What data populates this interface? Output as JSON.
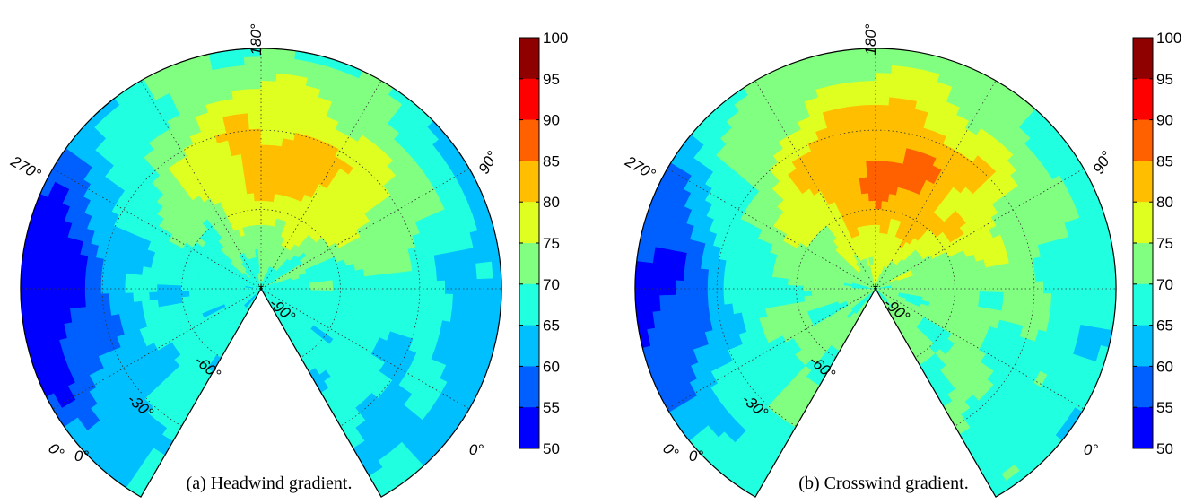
{
  "chart_data": [
    {
      "type": "heatmap",
      "subtype": "polar-contour",
      "caption": "(a) Headwind gradient.",
      "angle_labels": [
        "180°",
        "90°",
        "270°",
        "-90°",
        "-60°",
        "-30°",
        "0°",
        "0°",
        "0°"
      ],
      "colorbar": {
        "min": 50,
        "max": 100,
        "step": 5,
        "tick_labels": [
          "100",
          "95",
          "90",
          "85",
          "80",
          "75",
          "70",
          "65",
          "60",
          "55",
          "50"
        ]
      },
      "levels": [
        50,
        55,
        60,
        65,
        70,
        75,
        80,
        85,
        90,
        95,
        100
      ],
      "field": {
        "base": 72,
        "peak_value": 88,
        "peak_direction_deg": 165,
        "peak_radius": 0.55,
        "low_value": 55,
        "low_direction_deg": 270,
        "low_radius": 0.95
      }
    },
    {
      "type": "heatmap",
      "subtype": "polar-contour",
      "caption": "(b) Crosswind gradient.",
      "angle_labels": [
        "180°",
        "90°",
        "270°",
        "-90°",
        "-60°",
        "-30°",
        "0°",
        "0°",
        "0°"
      ],
      "colorbar": {
        "min": 50,
        "max": 100,
        "step": 5,
        "tick_labels": [
          "100",
          "95",
          "90",
          "85",
          "80",
          "75",
          "70",
          "65",
          "60",
          "55",
          "50"
        ]
      },
      "levels": [
        50,
        55,
        60,
        65,
        70,
        75,
        80,
        85,
        90,
        95,
        100
      ],
      "field": {
        "base": 76,
        "peak_value": 91,
        "peak_direction_deg": 170,
        "peak_radius": 0.5,
        "low_value": 58,
        "low_direction_deg": 270,
        "low_radius": 0.95
      }
    }
  ],
  "colors": {
    "colormap": [
      "#00008f",
      "#0000ff",
      "#0060ff",
      "#00bfff",
      "#20ffdf",
      "#80ff80",
      "#dfff20",
      "#ffbf00",
      "#ff6000",
      "#ff0000",
      "#8f0000"
    ]
  }
}
